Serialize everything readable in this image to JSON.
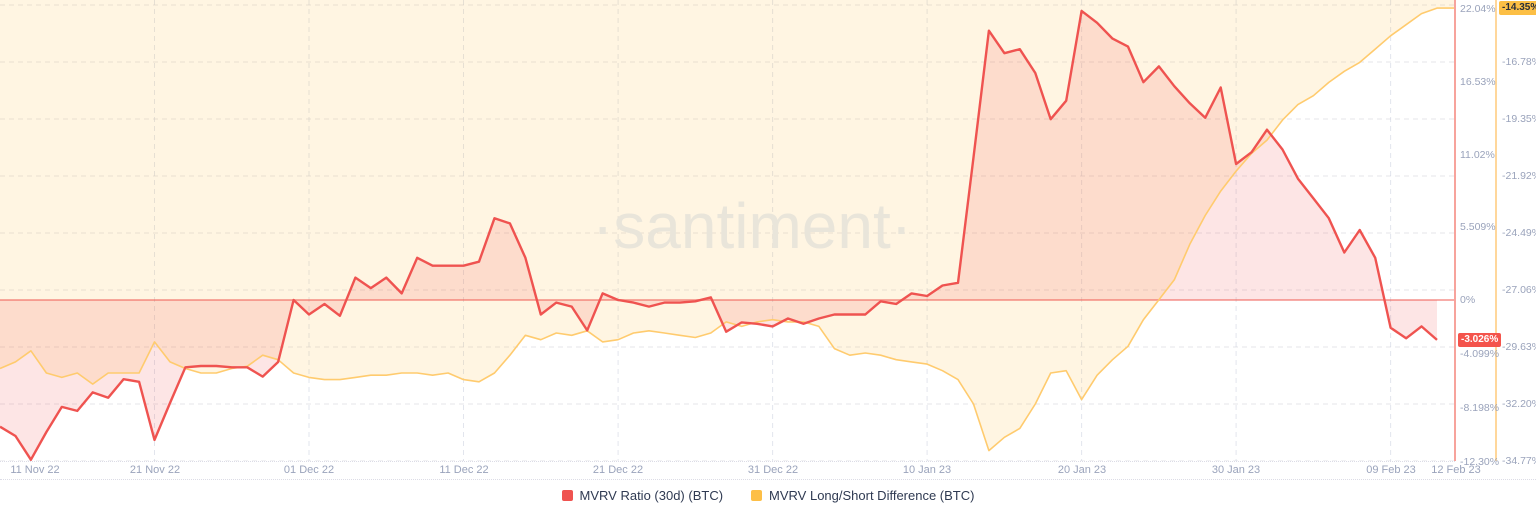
{
  "watermark": "·santiment·",
  "legend": [
    {
      "label": "MVRV Ratio (30d) (BTC)",
      "color": "#ef5350"
    },
    {
      "label": "MVRV Long/Short Difference (BTC)",
      "color": "#fdbf47"
    }
  ],
  "x_axis": {
    "ticks": [
      {
        "label": "11 Nov 22",
        "day": 0
      },
      {
        "label": "21 Nov 22",
        "day": 10
      },
      {
        "label": "01 Dec 22",
        "day": 20
      },
      {
        "label": "11 Dec 22",
        "day": 30
      },
      {
        "label": "21 Dec 22",
        "day": 40
      },
      {
        "label": "31 Dec 22",
        "day": 50
      },
      {
        "label": "10 Jan 23",
        "day": 60
      },
      {
        "label": "20 Jan 23",
        "day": 70
      },
      {
        "label": "30 Jan 23",
        "day": 80
      },
      {
        "label": "09 Feb 23",
        "day": 90
      },
      {
        "label": "12 Feb 23",
        "day": 93
      }
    ]
  },
  "right_axis_red": {
    "ticks": [
      {
        "label": "22.04%",
        "value": 22.04
      },
      {
        "label": "16.53%",
        "value": 16.53
      },
      {
        "label": "11.02%",
        "value": 11.02
      },
      {
        "label": "5.509%",
        "value": 5.509
      },
      {
        "label": "0%",
        "value": 0
      },
      {
        "label": "-4.099%",
        "value": -4.099
      },
      {
        "label": "-8.198%",
        "value": -8.198
      },
      {
        "label": "-12.30%",
        "value": -12.3
      }
    ],
    "current_value": "-3.026%",
    "current_value_num": -3.026
  },
  "right_axis_yellow": {
    "ticks": [
      {
        "label": "-16.78%",
        "value": -16.78
      },
      {
        "label": "-19.35%",
        "value": -19.35
      },
      {
        "label": "-21.92%",
        "value": -21.92
      },
      {
        "label": "-24.49%",
        "value": -24.49
      },
      {
        "label": "-27.06%",
        "value": -27.06
      },
      {
        "label": "-29.63%",
        "value": -29.63
      },
      {
        "label": "-32.20%",
        "value": -32.2
      },
      {
        "label": "-34.77%",
        "value": -34.77
      }
    ],
    "current_value": "-14.35%",
    "current_value_num": -14.35
  },
  "colors": {
    "red_line": "#ef5350",
    "red_fill": "rgba(239,83,80,0.15)",
    "red_zero_line": "rgba(240,90,82,0.5)",
    "red_badge_bg": "#f4544c",
    "yellow_line": "#ffcb6e",
    "yellow_fill": "rgba(252,191,73,0.16)",
    "yellow_badge_bg": "#fcbf45",
    "axis_label": "#9aa3bb",
    "watermark": "#e9e5da"
  },
  "chart_data": {
    "type": "area",
    "x_start_date": "11 Nov 22",
    "x_end_date": "12 Feb 23",
    "frequency": "daily",
    "grid": "dashed",
    "legend_position": "bottom-center",
    "series": [
      {
        "name": "MVRV Ratio (30d) (BTC)",
        "unit": "%",
        "axis": "right-inner",
        "axis_range": [
          -12.5,
          22.4
        ],
        "current_value": -3.026,
        "values": [
          -9.6,
          -10.3,
          -12.1,
          -10.0,
          -8.1,
          -8.4,
          -7.0,
          -7.4,
          -6.0,
          -6.2,
          -10.6,
          -7.8,
          -5.1,
          -5.0,
          -5.0,
          -5.1,
          -5.1,
          -5.8,
          -4.7,
          0.0,
          -1.1,
          -0.3,
          -1.2,
          1.7,
          0.9,
          1.7,
          0.5,
          3.2,
          2.6,
          2.6,
          2.6,
          2.9,
          6.2,
          5.8,
          3.2,
          -1.1,
          -0.2,
          -0.5,
          -2.3,
          0.5,
          0.0,
          -0.2,
          -0.5,
          -0.2,
          -0.2,
          -0.1,
          0.2,
          -2.4,
          -1.7,
          -1.8,
          -2.0,
          -1.4,
          -1.8,
          -1.4,
          -1.1,
          -1.1,
          -1.1,
          -0.1,
          -0.3,
          0.5,
          0.3,
          1.1,
          1.3,
          10.8,
          20.4,
          18.7,
          19.0,
          17.2,
          13.7,
          15.1,
          21.9,
          21.0,
          19.8,
          19.2,
          16.5,
          17.7,
          16.2,
          14.9,
          13.8,
          16.1,
          10.3,
          11.2,
          12.9,
          11.4,
          9.2,
          7.7,
          6.2,
          3.6,
          5.3,
          3.2,
          -2.1,
          -2.9,
          -2.0,
          -3.026
        ]
      },
      {
        "name": "MVRV Long/Short Difference (BTC)",
        "unit": "%",
        "axis": "right-outer",
        "axis_range": [
          -35.0,
          -14.2
        ],
        "current_value": -14.35,
        "values": [
          -30.6,
          -30.3,
          -29.8,
          -30.8,
          -31.0,
          -30.8,
          -31.3,
          -30.8,
          -30.8,
          -30.8,
          -29.4,
          -30.3,
          -30.6,
          -30.8,
          -30.8,
          -30.6,
          -30.5,
          -30.0,
          -30.2,
          -30.8,
          -31.0,
          -31.1,
          -31.1,
          -31.0,
          -30.9,
          -30.9,
          -30.8,
          -30.8,
          -30.9,
          -30.8,
          -31.1,
          -31.2,
          -30.8,
          -30.0,
          -29.1,
          -29.3,
          -29.0,
          -29.1,
          -28.9,
          -29.4,
          -29.3,
          -29.0,
          -28.9,
          -29.0,
          -29.1,
          -29.2,
          -29.0,
          -28.5,
          -28.7,
          -28.5,
          -28.4,
          -28.5,
          -28.5,
          -28.7,
          -29.7,
          -30.0,
          -29.9,
          -30.0,
          -30.2,
          -30.3,
          -30.4,
          -30.7,
          -31.1,
          -32.2,
          -34.3,
          -33.7,
          -33.3,
          -32.2,
          -30.8,
          -30.7,
          -32.0,
          -30.9,
          -30.2,
          -29.6,
          -28.4,
          -27.5,
          -26.6,
          -25.0,
          -23.7,
          -22.6,
          -21.7,
          -20.9,
          -20.3,
          -19.4,
          -18.7,
          -18.3,
          -17.7,
          -17.2,
          -16.8,
          -16.2,
          -15.6,
          -15.1,
          -14.6,
          -14.35
        ]
      }
    ]
  }
}
